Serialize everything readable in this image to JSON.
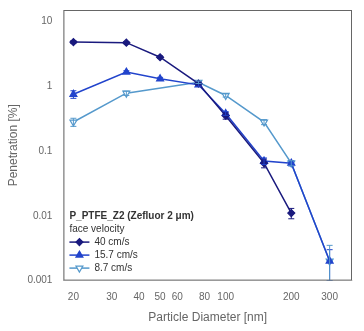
{
  "chart_data": {
    "type": "line",
    "xlabel": "Particle Diameter [nm]",
    "ylabel": "Penetration [%]",
    "legend_title": [
      "P_PTFE_Z2 (Zefluor 2 μm)",
      "face velocity"
    ],
    "log": true,
    "grid": false,
    "legend": "lower left",
    "xlim": [
      18,
      380
    ],
    "ylim": [
      0.001,
      15
    ],
    "xticks": [
      20,
      30,
      40,
      50,
      60,
      80,
      100,
      200,
      300
    ],
    "yticks": [
      0.001,
      0.01,
      0.1,
      1,
      10
    ],
    "series": [
      {
        "name": "40 cm/s",
        "color": "#1a1a7e",
        "marker": "diamond",
        "x": [
          20,
          35,
          50,
          75,
          100,
          150,
          200
        ],
        "values": [
          4.8,
          4.7,
          2.8,
          1.1,
          0.35,
          0.065,
          0.011
        ],
        "yerr_lo": [
          0.25,
          0.18,
          0.12,
          0.07,
          0.04,
          0.01,
          0.002
        ],
        "yerr_hi": [
          0.25,
          0.18,
          0.12,
          0.07,
          0.04,
          0.01,
          0.002
        ]
      },
      {
        "name": "15.7 cm/s",
        "color": "#2244cc",
        "marker": "triangle_up",
        "x": [
          20,
          35,
          50,
          75,
          100,
          150,
          200,
          300
        ],
        "values": [
          0.75,
          1.65,
          1.3,
          1.05,
          0.38,
          0.07,
          0.065,
          0.002
        ],
        "yerr_lo": [
          0.1,
          0.08,
          0.07,
          0.05,
          0.025,
          0.008,
          0.006,
          0.001
        ],
        "yerr_hi": [
          0.1,
          0.08,
          0.07,
          0.05,
          0.025,
          0.008,
          0.006,
          0.001
        ]
      },
      {
        "name": "8.7 cm/s",
        "color": "#5599cc",
        "marker": "triangle_down_open",
        "x": [
          20,
          35,
          75,
          100,
          150,
          200,
          300
        ],
        "values": [
          0.28,
          0.78,
          1.15,
          0.72,
          0.28,
          0.065,
          0.002
        ],
        "yerr_lo": [
          0.04,
          0.06,
          0.05,
          0.04,
          0.025,
          0.006,
          0.001
        ],
        "yerr_hi": [
          0.04,
          0.06,
          0.05,
          0.04,
          0.025,
          0.006,
          0.0015
        ]
      }
    ]
  }
}
